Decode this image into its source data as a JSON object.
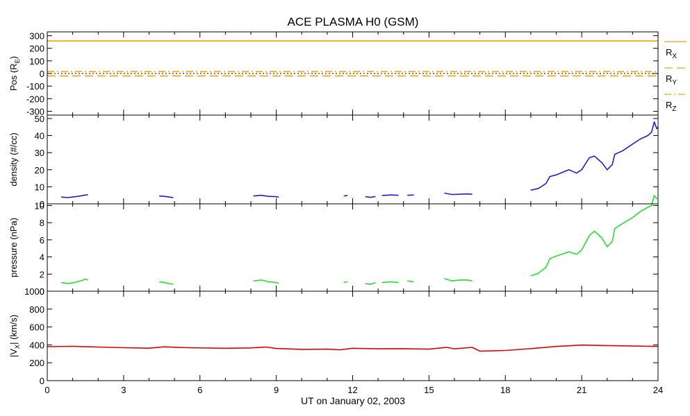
{
  "title": "ACE PLASMA H0 (GSM)",
  "xlabel": "UT on January 02, 2003",
  "x_ticks": [
    "0",
    "3",
    "6",
    "9",
    "12",
    "15",
    "18",
    "21",
    "24"
  ],
  "chart_data": [
    {
      "type": "line",
      "panel": "position",
      "ylabel": "Pos (R",
      "ylabel_sub": "E",
      "ylabel_end": ")",
      "ylim": [
        -330,
        330
      ],
      "x_range": [
        0,
        24
      ],
      "y_ticks": [
        300,
        200,
        100,
        0,
        -100,
        -200,
        -300
      ],
      "zero_line": true,
      "series": [
        {
          "name": "R",
          "name_sub": "X",
          "color": "#f4a300",
          "style": "solid",
          "x": [
            0,
            24
          ],
          "y": [
            258,
            258
          ]
        },
        {
          "name": "R",
          "name_sub": "Y",
          "color": "#f4a300",
          "style": "dashed",
          "x": [
            0,
            24
          ],
          "y": [
            -20,
            -20
          ]
        },
        {
          "name": "R",
          "name_sub": "Z",
          "color": "#f4a300",
          "style": "dashdot",
          "x": [
            0,
            24
          ],
          "y": [
            15,
            15
          ]
        }
      ]
    },
    {
      "type": "line",
      "panel": "density",
      "ylabel": "density (#/cc)",
      "ylim": [
        0,
        52
      ],
      "x_range": [
        0,
        24
      ],
      "y_ticks": [
        0,
        10,
        20,
        30,
        40,
        50
      ],
      "series": [
        {
          "color": "#2b15d9",
          "segments": [
            {
              "x": [
                0.55,
                0.8,
                1.05,
                1.3,
                1.5,
                1.6
              ],
              "y": [
                4,
                3.7,
                4.1,
                4.6,
                5.2,
                5.3
              ]
            },
            {
              "x": [
                4.4,
                4.6,
                4.8,
                4.95
              ],
              "y": [
                4.6,
                4.4,
                4.0,
                3.6
              ]
            },
            {
              "x": [
                8.1,
                8.4,
                8.7,
                9.0,
                9.1
              ],
              "y": [
                4.6,
                5.0,
                4.4,
                4.2,
                3.9
              ]
            },
            {
              "x": [
                11.65,
                11.8
              ],
              "y": [
                4.6,
                4.9
              ]
            },
            {
              "x": [
                12.5,
                12.7,
                12.9
              ],
              "y": [
                4.2,
                3.8,
                4.3
              ]
            },
            {
              "x": [
                13.15,
                13.5,
                13.8
              ],
              "y": [
                4.9,
                5.2,
                5.0
              ]
            },
            {
              "x": [
                14.15,
                14.4
              ],
              "y": [
                5.0,
                5.2
              ]
            },
            {
              "x": [
                15.6,
                15.9,
                16.2,
                16.5,
                16.7
              ],
              "y": [
                6.3,
                5.5,
                5.6,
                5.8,
                5.6
              ]
            },
            {
              "x": [
                19.0,
                19.3,
                19.6,
                19.75,
                20.0,
                20.5,
                20.8,
                21.0,
                21.3,
                21.5,
                21.8,
                22.0,
                22.2,
                22.3,
                22.6,
                23.0,
                23.3,
                23.6,
                23.75,
                23.85,
                23.95,
                24.0
              ],
              "y": [
                8,
                9,
                12,
                16,
                17,
                20,
                18,
                20,
                27,
                28,
                24,
                20,
                23,
                29,
                31,
                35,
                38,
                40,
                42,
                48,
                44,
                45
              ]
            }
          ]
        }
      ]
    },
    {
      "type": "line",
      "panel": "pressure",
      "ylabel": "pressure (nPa)",
      "ylim": [
        0,
        10.2
      ],
      "x_range": [
        0,
        24
      ],
      "y_ticks": [
        0,
        2,
        4,
        6,
        8,
        10
      ],
      "series": [
        {
          "color": "#22e02a",
          "segments": [
            {
              "x": [
                0.55,
                0.8,
                1.05,
                1.3,
                1.5,
                1.6
              ],
              "y": [
                1.0,
                0.9,
                1.0,
                1.2,
                1.4,
                1.3
              ]
            },
            {
              "x": [
                4.4,
                4.6,
                4.8,
                4.95
              ],
              "y": [
                1.1,
                1.0,
                0.9,
                0.8
              ]
            },
            {
              "x": [
                8.1,
                8.4,
                8.7,
                9.0,
                9.1
              ],
              "y": [
                1.2,
                1.3,
                1.1,
                1.0,
                0.9
              ]
            },
            {
              "x": [
                11.65,
                11.8
              ],
              "y": [
                1.0,
                1.1
              ]
            },
            {
              "x": [
                12.5,
                12.7,
                12.9
              ],
              "y": [
                0.9,
                0.8,
                1.0
              ]
            },
            {
              "x": [
                13.15,
                13.5,
                13.8
              ],
              "y": [
                1.0,
                1.1,
                1.0
              ]
            },
            {
              "x": [
                14.15,
                14.4
              ],
              "y": [
                1.2,
                1.1
              ]
            },
            {
              "x": [
                15.6,
                15.9,
                16.2,
                16.5,
                16.7
              ],
              "y": [
                1.5,
                1.2,
                1.3,
                1.3,
                1.2
              ]
            },
            {
              "x": [
                19.0,
                19.3,
                19.6,
                19.75,
                20.0,
                20.5,
                20.8,
                21.0,
                21.3,
                21.5,
                21.8,
                22.0,
                22.2,
                22.3,
                22.6,
                23.0,
                23.3,
                23.6,
                23.75,
                23.85,
                23.95,
                24.0
              ],
              "y": [
                1.8,
                2.1,
                2.8,
                3.8,
                4.1,
                4.6,
                4.3,
                4.8,
                6.5,
                7.0,
                6.2,
                5.2,
                5.8,
                7.3,
                7.9,
                8.6,
                9.3,
                9.8,
                10.0,
                12.0,
                10.8,
                10.9
              ]
            }
          ]
        }
      ]
    },
    {
      "type": "line",
      "panel": "velocity",
      "ylabel": "|V",
      "ylabel_sub": "X",
      "ylabel_end": "| (km/s)",
      "ylim": [
        0,
        1000
      ],
      "x_range": [
        0,
        24
      ],
      "y_ticks": [
        0,
        200,
        400,
        600,
        800,
        1000
      ],
      "series": [
        {
          "color": "#e00000",
          "segments": [
            {
              "x": [
                0,
                1.0,
                2.0,
                3.0,
                4.0,
                4.6,
                5.5,
                7.0,
                8.0,
                8.6,
                9.0,
                10.0,
                11.0,
                11.5,
                12.0,
                13.0,
                14.0,
                15.0,
                15.7,
                16.0,
                16.7,
                17.0,
                18.0,
                19.0,
                20.0,
                21.0,
                22.0,
                23.0,
                24.0
              ],
              "y": [
                380,
                384,
                376,
                368,
                363,
                378,
                368,
                362,
                366,
                376,
                360,
                350,
                352,
                345,
                362,
                356,
                357,
                352,
                372,
                356,
                372,
                330,
                337,
                358,
                382,
                398,
                392,
                387,
                382
              ]
            }
          ]
        }
      ]
    }
  ]
}
